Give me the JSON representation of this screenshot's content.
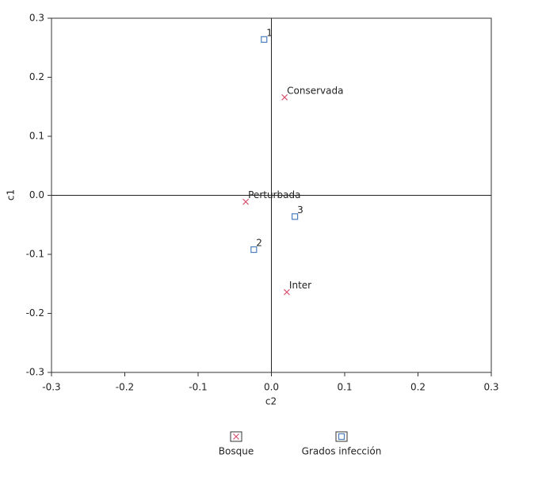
{
  "chart_data": {
    "type": "scatter",
    "x_label": "c2",
    "y_label": "c1",
    "xlim": [
      -0.3,
      0.3
    ],
    "ylim": [
      -0.3,
      0.3
    ],
    "xticks": [
      -0.3,
      -0.2,
      -0.1,
      {
        "value": 0,
        "label": "0.0"
      },
      0.1,
      0.2,
      0.3
    ],
    "yticks": [
      -0.3,
      -0.2,
      -0.1,
      {
        "value": 0,
        "label": "0.0"
      },
      0.1,
      0.2,
      0.3
    ],
    "zero_lines": true,
    "series": [
      {
        "name": "Bosque",
        "marker": "x",
        "color": "#d9536f",
        "labels": [
          "Conservada",
          "Perturbada",
          "Inter"
        ],
        "x": [
          0.018,
          -0.035,
          0.021
        ],
        "values": [
          0.166,
          -0.011,
          -0.164
        ]
      },
      {
        "name": "Grados infección",
        "marker": "square",
        "color": "#4a7ebf",
        "labels": [
          "1",
          "3",
          "2"
        ],
        "x": [
          -0.01,
          0.032,
          -0.024
        ],
        "values": [
          0.264,
          -0.036,
          -0.092
        ]
      }
    ]
  }
}
